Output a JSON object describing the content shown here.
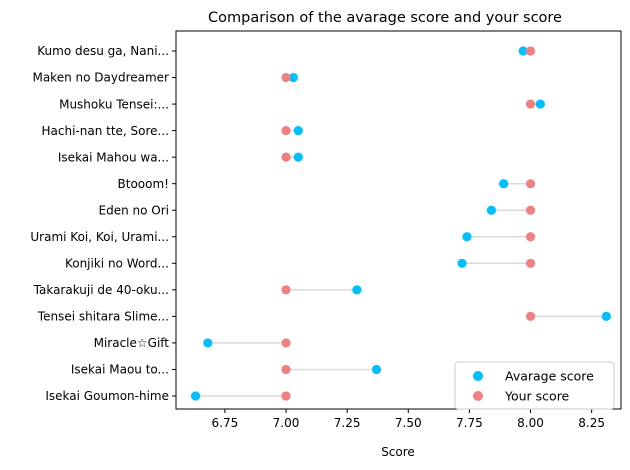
{
  "chart_data": {
    "type": "scatter",
    "title": "Comparison of the avarage score and your score",
    "xlabel": "Score",
    "ylabel": "",
    "xlim": [
      6.55,
      8.37
    ],
    "xticks": [
      "6.75",
      "7.00",
      "7.25",
      "7.50",
      "7.75",
      "8.00",
      "8.25"
    ],
    "xtick_values": [
      6.75,
      7.0,
      7.25,
      7.5,
      7.75,
      8.0,
      8.25
    ],
    "categories": [
      "Kumo desu ga, Nani...",
      "Maken no Daydreamer",
      "Mushoku Tensei:...",
      "Hachi-nan tte, Sore...",
      "Isekai Mahou wa...",
      "Btooom!",
      "Eden no Ori",
      "Urami Koi, Koi, Urami...",
      "Konjiki no Word...",
      "Takarakuji de 40-oku...",
      "Tensei shitara Slime...",
      "Miracle☆Gift",
      "Isekai Maou to...",
      "Isekai Goumon-hime"
    ],
    "series": [
      {
        "name": "Avarage score",
        "color": "#00bfff",
        "values": [
          7.97,
          7.03,
          8.04,
          7.05,
          7.05,
          7.89,
          7.84,
          7.74,
          7.72,
          7.29,
          8.31,
          6.68,
          7.37,
          6.63
        ]
      },
      {
        "name": "Your score",
        "color": "#f08080",
        "values": [
          8,
          7,
          8,
          7,
          7,
          8,
          8,
          8,
          8,
          7,
          8,
          7,
          7,
          7
        ]
      }
    ],
    "connector_color": "#d9d9d9",
    "legend_position": "lower right",
    "grid": false
  }
}
